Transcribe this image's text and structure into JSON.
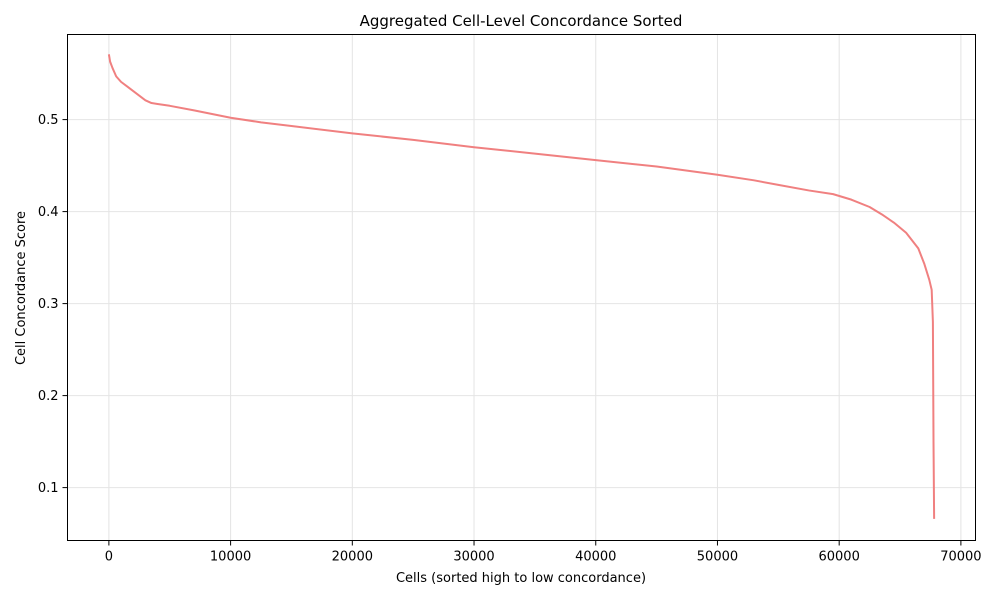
{
  "chart_data": {
    "type": "line",
    "title": "Aggregated Cell-Level Concordance Sorted",
    "xlabel": "Cells (sorted high to low concordance)",
    "ylabel": "Cell Concordance Score",
    "xlim": [
      -3400,
      71200
    ],
    "ylim": [
      0.0425,
      0.5925
    ],
    "xticks": [
      0,
      10000,
      20000,
      30000,
      40000,
      50000,
      60000,
      70000
    ],
    "xtick_labels": [
      "0",
      "10000",
      "20000",
      "30000",
      "40000",
      "50000",
      "60000",
      "70000"
    ],
    "yticks": [
      0.1,
      0.2,
      0.3,
      0.4,
      0.5
    ],
    "ytick_labels": [
      "0.1",
      "0.2",
      "0.3",
      "0.4",
      "0.5"
    ],
    "grid": true,
    "legend": "none",
    "series": [
      {
        "color": "#f08080",
        "x": [
          0,
          100,
          300,
          600,
          1000,
          1500,
          2000,
          2500,
          3000,
          3500,
          4000,
          5000,
          7000,
          10000,
          12500,
          15000,
          20000,
          25000,
          30000,
          35000,
          40000,
          45000,
          50000,
          53000,
          55000,
          57500,
          59500,
          61000,
          62500,
          63500,
          64500,
          65500,
          66500,
          67000,
          67400,
          67600,
          67700,
          67750,
          67800
        ],
        "y": [
          0.571,
          0.563,
          0.556,
          0.547,
          0.541,
          0.536,
          0.531,
          0.526,
          0.521,
          0.518,
          0.517,
          0.515,
          0.51,
          0.502,
          0.497,
          0.493,
          0.485,
          0.478,
          0.47,
          0.463,
          0.456,
          0.449,
          0.44,
          0.434,
          0.429,
          0.423,
          0.419,
          0.413,
          0.405,
          0.397,
          0.388,
          0.377,
          0.36,
          0.343,
          0.326,
          0.315,
          0.28,
          0.15,
          0.066
        ]
      }
    ]
  }
}
